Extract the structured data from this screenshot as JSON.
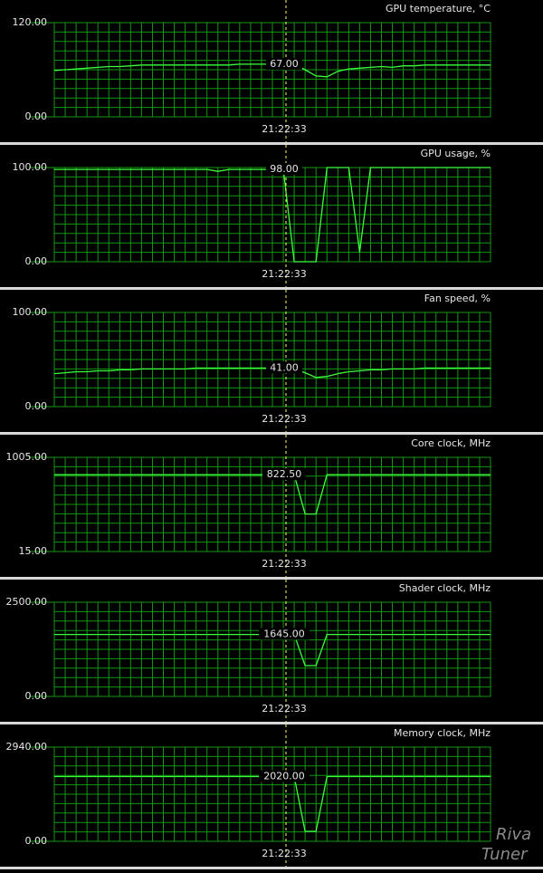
{
  "chart_data": [
    {
      "type": "line",
      "title": "GPU temperature, °C",
      "ylim": [
        0,
        120
      ],
      "yticks": [
        {
          "value": 0,
          "label": "0.00"
        },
        {
          "value": 120,
          "label": "120.00"
        }
      ],
      "cursor": {
        "value": 67,
        "label": "67.00"
      },
      "cursor_time": "21:22:33",
      "series": [
        {
          "color": "#3cff3c",
          "values": [
            59,
            60,
            61,
            62,
            63,
            64,
            64,
            65,
            66,
            66,
            66,
            66,
            66,
            66,
            66,
            66,
            66,
            67,
            67,
            67,
            67,
            67,
            67,
            60,
            52,
            51,
            58,
            61,
            62,
            63,
            64,
            63,
            65,
            65,
            66,
            66,
            66,
            66,
            66,
            66,
            66
          ]
        }
      ]
    },
    {
      "type": "line",
      "title": "GPU usage, %",
      "ylim": [
        0,
        100
      ],
      "yticks": [
        {
          "value": 0,
          "label": "0.00"
        },
        {
          "value": 100,
          "label": "100.00"
        }
      ],
      "cursor": {
        "value": 98,
        "label": "98.00"
      },
      "cursor_time": "21:22:33",
      "series": [
        {
          "color": "#3cff3c",
          "values": [
            98,
            98,
            98,
            98,
            98,
            98,
            98,
            98,
            98,
            98,
            98,
            98,
            98,
            98,
            98,
            96,
            98,
            98,
            98,
            98,
            98,
            98,
            0,
            0,
            0,
            100,
            100,
            100,
            10,
            100,
            100,
            100,
            100,
            100,
            100,
            100,
            100,
            100,
            100,
            100,
            100
          ]
        }
      ]
    },
    {
      "type": "line",
      "title": "Fan speed, %",
      "ylim": [
        0,
        100
      ],
      "yticks": [
        {
          "value": 0,
          "label": "0.00"
        },
        {
          "value": 100,
          "label": "100.00"
        }
      ],
      "cursor": {
        "value": 41,
        "label": "41.00"
      },
      "cursor_time": "21:22:33",
      "series": [
        {
          "color": "#3cff3c",
          "values": [
            35,
            36,
            37,
            37,
            38,
            38,
            39,
            39,
            40,
            40,
            40,
            40,
            40,
            41,
            41,
            41,
            41,
            41,
            41,
            41,
            41,
            41,
            40,
            36,
            31,
            32,
            35,
            37,
            38,
            39,
            39,
            40,
            40,
            40,
            41,
            41,
            41,
            41,
            41,
            41,
            41
          ]
        }
      ]
    },
    {
      "type": "line",
      "title": "Core clock, MHz",
      "ylim": [
        15,
        1005
      ],
      "yticks": [
        {
          "value": 15,
          "label": "15.00"
        },
        {
          "value": 1005,
          "label": "1005.00"
        }
      ],
      "cursor": {
        "value": 822.5,
        "label": "822.50"
      },
      "cursor_time": "21:22:33",
      "series": [
        {
          "color": "#3cff3c",
          "values": [
            822.5,
            822.5,
            822.5,
            822.5,
            822.5,
            822.5,
            822.5,
            822.5,
            822.5,
            822.5,
            822.5,
            822.5,
            822.5,
            822.5,
            822.5,
            822.5,
            822.5,
            822.5,
            822.5,
            822.5,
            822.5,
            822.5,
            822.5,
            409,
            409,
            822.5,
            822.5,
            822.5,
            822.5,
            822.5,
            822.5,
            822.5,
            822.5,
            822.5,
            822.5,
            822.5,
            822.5,
            822.5,
            822.5,
            822.5,
            822.5
          ]
        }
      ]
    },
    {
      "type": "line",
      "title": "Shader clock, MHz",
      "ylim": [
        0,
        2500
      ],
      "yticks": [
        {
          "value": 0,
          "label": "0.00"
        },
        {
          "value": 2500,
          "label": "2500.00"
        }
      ],
      "cursor": {
        "value": 1645,
        "label": "1645.00"
      },
      "cursor_time": "21:22:33",
      "series": [
        {
          "color": "#3cff3c",
          "values": [
            1645,
            1645,
            1645,
            1645,
            1645,
            1645,
            1645,
            1645,
            1645,
            1645,
            1645,
            1645,
            1645,
            1645,
            1645,
            1645,
            1645,
            1645,
            1645,
            1645,
            1645,
            1645,
            1645,
            817,
            817,
            1645,
            1645,
            1645,
            1645,
            1645,
            1645,
            1645,
            1645,
            1645,
            1645,
            1645,
            1645,
            1645,
            1645,
            1645,
            1645
          ]
        }
      ]
    },
    {
      "type": "line",
      "title": "Memory clock, MHz",
      "ylim": [
        0,
        2940
      ],
      "yticks": [
        {
          "value": 0,
          "label": "0.00"
        },
        {
          "value": 2940,
          "label": "2940.00"
        }
      ],
      "cursor": {
        "value": 2020,
        "label": "2020.00"
      },
      "cursor_time": "21:22:33",
      "series": [
        {
          "color": "#3cff3c",
          "values": [
            2020,
            2020,
            2020,
            2020,
            2020,
            2020,
            2020,
            2020,
            2020,
            2020,
            2020,
            2020,
            2020,
            2020,
            2020,
            2020,
            2020,
            2020,
            2020,
            2020,
            2020,
            2020,
            2020,
            311,
            311,
            2020,
            2020,
            2020,
            2020,
            2020,
            2020,
            2020,
            2020,
            2020,
            2020,
            2020,
            2020,
            2020,
            2020,
            2020,
            2020
          ]
        }
      ]
    }
  ],
  "watermark": [
    "Riva",
    "Tuner"
  ]
}
